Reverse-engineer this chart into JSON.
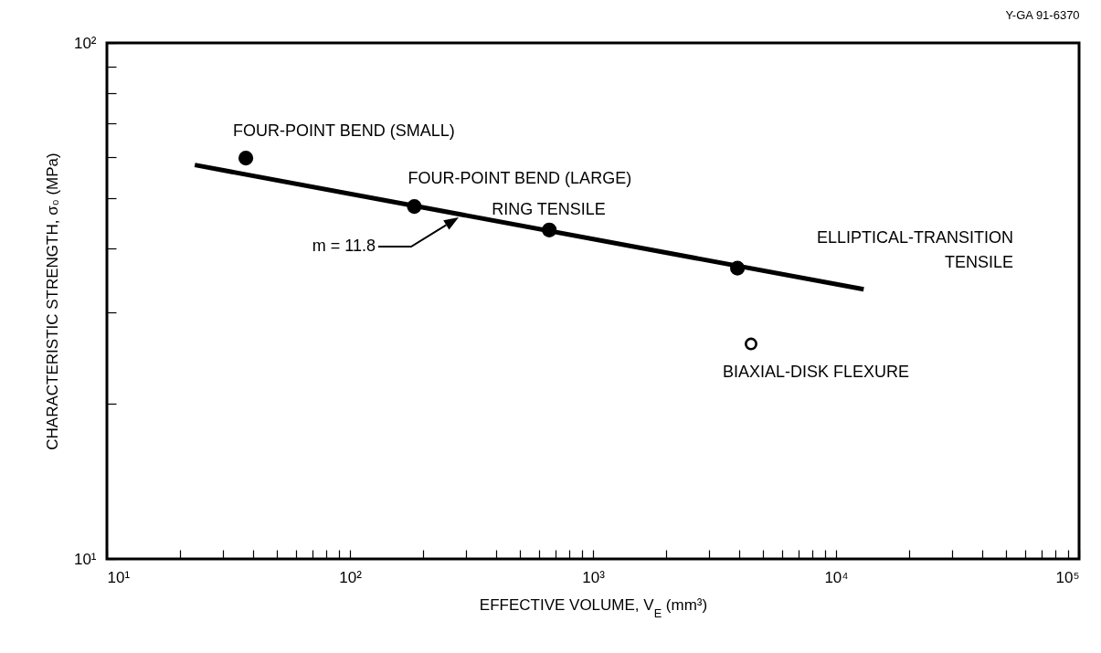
{
  "chart_data": {
    "type": "scatter",
    "xlabel": "EFFECTIVE VOLUME, V$_{E}$ (mm³)",
    "ylabel": "CHARACTERISTIC STRENGTH, σ₀ (MPa)",
    "log": "xy",
    "grid": false,
    "xlim": [
      10,
      100000
    ],
    "ylim": [
      10,
      100
    ],
    "xticks": [
      {
        "value": 10,
        "label": "10¹"
      },
      {
        "value": 20,
        "label": null
      },
      {
        "value": 30,
        "label": null
      },
      {
        "value": 40,
        "label": null
      },
      {
        "value": 50,
        "label": null
      },
      {
        "value": 60,
        "label": null
      },
      {
        "value": 70,
        "label": null
      },
      {
        "value": 80,
        "label": null
      },
      {
        "value": 90,
        "label": null
      },
      {
        "value": 100,
        "label": "10²"
      },
      {
        "value": 200,
        "label": null
      },
      {
        "value": 300,
        "label": null
      },
      {
        "value": 400,
        "label": null
      },
      {
        "value": 500,
        "label": null
      },
      {
        "value": 600,
        "label": null
      },
      {
        "value": 700,
        "label": null
      },
      {
        "value": 800,
        "label": null
      },
      {
        "value": 900,
        "label": null
      },
      {
        "value": 1000,
        "label": "10³"
      },
      {
        "value": 2000,
        "label": null
      },
      {
        "value": 3000,
        "label": null
      },
      {
        "value": 4000,
        "label": null
      },
      {
        "value": 5000,
        "label": null
      },
      {
        "value": 6000,
        "label": null
      },
      {
        "value": 7000,
        "label": null
      },
      {
        "value": 8000,
        "label": null
      },
      {
        "value": 9000,
        "label": null
      },
      {
        "value": 10000,
        "label": "10⁴"
      },
      {
        "value": 20000,
        "label": null
      },
      {
        "value": 30000,
        "label": null
      },
      {
        "value": 40000,
        "label": null
      },
      {
        "value": 50000,
        "label": null
      },
      {
        "value": 60000,
        "label": null
      },
      {
        "value": 70000,
        "label": null
      },
      {
        "value": 80000,
        "label": null
      },
      {
        "value": 90000,
        "label": null
      },
      {
        "value": 100000,
        "label": "10⁵"
      }
    ],
    "yticks": [
      {
        "value": 10,
        "label": "10¹"
      },
      {
        "value": 20,
        "label": null
      },
      {
        "value": 30,
        "label": null
      },
      {
        "value": 40,
        "label": null
      },
      {
        "value": 50,
        "label": null
      },
      {
        "value": 60,
        "label": null
      },
      {
        "value": 70,
        "label": null
      },
      {
        "value": 80,
        "label": null
      },
      {
        "value": 90,
        "label": null
      },
      {
        "value": 100,
        "label": "10²"
      }
    ],
    "series": [
      {
        "color": "#000000",
        "marker": "circle",
        "x": [
          37.3,
          184,
          661,
          3930
        ],
        "values": [
          59.8,
          48.2,
          43.4,
          36.6
        ]
      },
      {
        "color": "#ffffff",
        "marker": "circle",
        "x": [
          4470
        ],
        "values": [
          26.1
        ]
      },
      {
        "type": "line",
        "color": "#000000",
        "x": [
          23,
          13000
        ],
        "values": [
          58,
          33.3
        ]
      }
    ],
    "annotations": [
      {
        "text": "FOUR-POINT BEND (SMALL)",
        "x": 37.3,
        "y": 59.8
      },
      {
        "text": "FOUR-POINT BEND (LARGE)",
        "x": 184,
        "y": 48.2
      },
      {
        "text": "RING TENSILE",
        "x": 661,
        "y": 43.4
      },
      "ELLIPTICAL-TRANSITION\nTENSILE",
      {
        "text": "BIAXIAL-DISK FLEXURE",
        "x": 4470,
        "y": 26.1
      },
      "m = 11.8",
      "Y-GA 91-6370"
    ]
  }
}
